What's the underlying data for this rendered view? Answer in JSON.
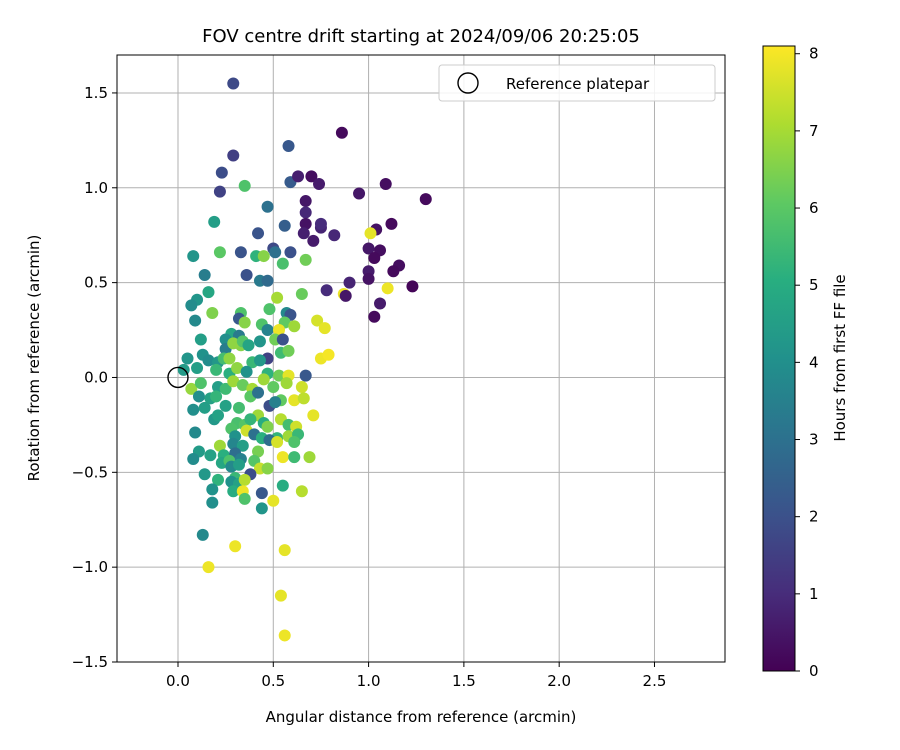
{
  "chart_data": {
    "type": "scatter",
    "title": "FOV centre drift starting at 2024/09/06 20:25:05",
    "xlabel": "Angular distance from reference (arcmin)",
    "ylabel": "Rotation from reference (arcmin)",
    "xlim": [
      -0.32,
      2.87
    ],
    "ylim": [
      -1.5,
      1.7
    ],
    "x_ticks": [
      0.0,
      0.5,
      1.0,
      1.5,
      2.0,
      2.5
    ],
    "y_ticks": [
      -1.5,
      -1.0,
      -0.5,
      0.0,
      0.5,
      1.0,
      1.5
    ],
    "grid": true,
    "legend": {
      "placement": "top-right",
      "entries": [
        "Reference platepar"
      ]
    },
    "reference_point": {
      "name": "Reference platepar",
      "x": 0.0,
      "y": 0.0
    },
    "colorbar": {
      "label": "Hours from first FF file",
      "range": [
        0,
        8.1
      ],
      "ticks": [
        0,
        1,
        2,
        3,
        4,
        5,
        6,
        7,
        8
      ],
      "colormap": "viridis"
    },
    "points": [
      {
        "x": 0.29,
        "y": 1.55,
        "h": 1.8
      },
      {
        "x": 0.58,
        "y": 1.22,
        "h": 2.2
      },
      {
        "x": 0.86,
        "y": 1.29,
        "h": 0.2
      },
      {
        "x": 0.29,
        "y": 1.17,
        "h": 1.5
      },
      {
        "x": 0.23,
        "y": 1.08,
        "h": 1.9
      },
      {
        "x": 0.22,
        "y": 0.98,
        "h": 1.6
      },
      {
        "x": 0.35,
        "y": 1.01,
        "h": 5.8
      },
      {
        "x": 0.59,
        "y": 1.03,
        "h": 2.3
      },
      {
        "x": 0.63,
        "y": 1.06,
        "h": 0.7
      },
      {
        "x": 0.7,
        "y": 1.06,
        "h": 0.3
      },
      {
        "x": 0.74,
        "y": 1.02,
        "h": 0.6
      },
      {
        "x": 0.95,
        "y": 0.97,
        "h": 0.5
      },
      {
        "x": 1.09,
        "y": 1.02,
        "h": 0.3
      },
      {
        "x": 1.3,
        "y": 0.94,
        "h": 0.2
      },
      {
        "x": 0.47,
        "y": 0.9,
        "h": 3.0
      },
      {
        "x": 0.67,
        "y": 0.93,
        "h": 0.5
      },
      {
        "x": 0.67,
        "y": 0.87,
        "h": 0.9
      },
      {
        "x": 0.19,
        "y": 0.82,
        "h": 4.5
      },
      {
        "x": 0.56,
        "y": 0.8,
        "h": 2.4
      },
      {
        "x": 0.67,
        "y": 0.81,
        "h": 0.4
      },
      {
        "x": 0.75,
        "y": 0.79,
        "h": 0.8
      },
      {
        "x": 0.75,
        "y": 0.81,
        "h": 1.0
      },
      {
        "x": 0.66,
        "y": 0.76,
        "h": 0.7
      },
      {
        "x": 0.71,
        "y": 0.72,
        "h": 0.6
      },
      {
        "x": 0.82,
        "y": 0.75,
        "h": 0.9
      },
      {
        "x": 1.04,
        "y": 0.78,
        "h": 0.4
      },
      {
        "x": 1.12,
        "y": 0.81,
        "h": 0.2
      },
      {
        "x": 1.01,
        "y": 0.76,
        "h": 7.8
      },
      {
        "x": 0.42,
        "y": 0.76,
        "h": 2.1
      },
      {
        "x": 0.33,
        "y": 0.66,
        "h": 2.1
      },
      {
        "x": 0.22,
        "y": 0.66,
        "h": 6.0
      },
      {
        "x": 0.5,
        "y": 0.68,
        "h": 1.8
      },
      {
        "x": 0.51,
        "y": 0.66,
        "h": 3.0
      },
      {
        "x": 0.59,
        "y": 0.66,
        "h": 2.0
      },
      {
        "x": 1.0,
        "y": 0.68,
        "h": 0.5
      },
      {
        "x": 1.06,
        "y": 0.67,
        "h": 0.3
      },
      {
        "x": 1.03,
        "y": 0.63,
        "h": 0.2
      },
      {
        "x": 0.08,
        "y": 0.64,
        "h": 4.2
      },
      {
        "x": 0.41,
        "y": 0.64,
        "h": 5.2
      },
      {
        "x": 0.45,
        "y": 0.64,
        "h": 6.6
      },
      {
        "x": 0.67,
        "y": 0.62,
        "h": 6.3
      },
      {
        "x": 0.55,
        "y": 0.6,
        "h": 5.7
      },
      {
        "x": 1.16,
        "y": 0.59,
        "h": 0.3
      },
      {
        "x": 1.0,
        "y": 0.56,
        "h": 0.6
      },
      {
        "x": 1.13,
        "y": 0.56,
        "h": 0.2
      },
      {
        "x": 0.14,
        "y": 0.54,
        "h": 3.4
      },
      {
        "x": 0.36,
        "y": 0.54,
        "h": 2.0
      },
      {
        "x": 0.43,
        "y": 0.51,
        "h": 3.3
      },
      {
        "x": 0.47,
        "y": 0.51,
        "h": 2.8
      },
      {
        "x": 0.78,
        "y": 0.46,
        "h": 1.0
      },
      {
        "x": 0.9,
        "y": 0.5,
        "h": 0.8
      },
      {
        "x": 1.0,
        "y": 0.52,
        "h": 0.4
      },
      {
        "x": 1.23,
        "y": 0.48,
        "h": 0.1
      },
      {
        "x": 0.16,
        "y": 0.45,
        "h": 4.8
      },
      {
        "x": 0.1,
        "y": 0.41,
        "h": 4.2
      },
      {
        "x": 0.07,
        "y": 0.38,
        "h": 3.9
      },
      {
        "x": 0.52,
        "y": 0.42,
        "h": 7.0
      },
      {
        "x": 0.65,
        "y": 0.44,
        "h": 6.2
      },
      {
        "x": 0.87,
        "y": 0.44,
        "h": 7.9
      },
      {
        "x": 0.88,
        "y": 0.43,
        "h": 0.5
      },
      {
        "x": 1.06,
        "y": 0.39,
        "h": 0.6
      },
      {
        "x": 1.03,
        "y": 0.32,
        "h": 0.2
      },
      {
        "x": 1.1,
        "y": 0.47,
        "h": 7.9
      },
      {
        "x": 0.18,
        "y": 0.34,
        "h": 6.5
      },
      {
        "x": 0.33,
        "y": 0.34,
        "h": 5.8
      },
      {
        "x": 0.48,
        "y": 0.36,
        "h": 5.8
      },
      {
        "x": 0.57,
        "y": 0.34,
        "h": 3.8
      },
      {
        "x": 0.59,
        "y": 0.33,
        "h": 2.1
      },
      {
        "x": 0.09,
        "y": 0.3,
        "h": 3.8
      },
      {
        "x": 0.32,
        "y": 0.31,
        "h": 2.2
      },
      {
        "x": 0.35,
        "y": 0.29,
        "h": 6.6
      },
      {
        "x": 0.44,
        "y": 0.28,
        "h": 5.8
      },
      {
        "x": 0.47,
        "y": 0.25,
        "h": 3.6
      },
      {
        "x": 0.56,
        "y": 0.29,
        "h": 6.1
      },
      {
        "x": 0.53,
        "y": 0.25,
        "h": 7.9
      },
      {
        "x": 0.61,
        "y": 0.27,
        "h": 6.9
      },
      {
        "x": 0.73,
        "y": 0.3,
        "h": 7.6
      },
      {
        "x": 0.77,
        "y": 0.26,
        "h": 7.8
      },
      {
        "x": 0.28,
        "y": 0.23,
        "h": 4.8
      },
      {
        "x": 0.12,
        "y": 0.2,
        "h": 4.5
      },
      {
        "x": 0.25,
        "y": 0.2,
        "h": 4.0
      },
      {
        "x": 0.32,
        "y": 0.22,
        "h": 3.3
      },
      {
        "x": 0.51,
        "y": 0.2,
        "h": 6.3
      },
      {
        "x": 0.55,
        "y": 0.2,
        "h": 2.0
      },
      {
        "x": 0.54,
        "y": 0.13,
        "h": 5.5
      },
      {
        "x": 0.25,
        "y": 0.15,
        "h": 3.4
      },
      {
        "x": 0.33,
        "y": 0.17,
        "h": 6.6
      },
      {
        "x": 0.29,
        "y": 0.18,
        "h": 6.7
      },
      {
        "x": 0.34,
        "y": 0.19,
        "h": 5.9
      },
      {
        "x": 0.37,
        "y": 0.17,
        "h": 4.7
      },
      {
        "x": 0.43,
        "y": 0.19,
        "h": 4.2
      },
      {
        "x": 0.47,
        "y": 0.1,
        "h": 1.6
      },
      {
        "x": 0.58,
        "y": 0.14,
        "h": 6.3
      },
      {
        "x": 0.13,
        "y": 0.12,
        "h": 4.1
      },
      {
        "x": 0.05,
        "y": 0.1,
        "h": 4.2
      },
      {
        "x": 0.16,
        "y": 0.09,
        "h": 3.9
      },
      {
        "x": 0.21,
        "y": 0.08,
        "h": 4.3
      },
      {
        "x": 0.24,
        "y": 0.1,
        "h": 5.6
      },
      {
        "x": 0.27,
        "y": 0.1,
        "h": 6.7
      },
      {
        "x": 0.39,
        "y": 0.08,
        "h": 5.4
      },
      {
        "x": 0.43,
        "y": 0.09,
        "h": 4.3
      },
      {
        "x": 0.75,
        "y": 0.1,
        "h": 7.9
      },
      {
        "x": 0.79,
        "y": 0.12,
        "h": 8.0
      },
      {
        "x": 0.03,
        "y": 0.04,
        "h": 4.4
      },
      {
        "x": 0.1,
        "y": 0.05,
        "h": 4.5
      },
      {
        "x": 0.2,
        "y": 0.04,
        "h": 5.4
      },
      {
        "x": 0.27,
        "y": 0.02,
        "h": 5.1
      },
      {
        "x": 0.31,
        "y": 0.05,
        "h": 6.7
      },
      {
        "x": 0.36,
        "y": 0.03,
        "h": 4.1
      },
      {
        "x": 0.47,
        "y": 0.02,
        "h": 5.2
      },
      {
        "x": 0.53,
        "y": 0.01,
        "h": 6.3
      },
      {
        "x": 0.58,
        "y": 0.01,
        "h": 7.8
      },
      {
        "x": 0.67,
        "y": 0.01,
        "h": 2.2
      },
      {
        "x": 0.07,
        "y": -0.06,
        "h": 6.8
      },
      {
        "x": 0.12,
        "y": -0.03,
        "h": 5.8
      },
      {
        "x": 0.21,
        "y": -0.05,
        "h": 4.5
      },
      {
        "x": 0.25,
        "y": -0.06,
        "h": 5.5
      },
      {
        "x": 0.29,
        "y": -0.02,
        "h": 6.9
      },
      {
        "x": 0.34,
        "y": -0.04,
        "h": 6.2
      },
      {
        "x": 0.39,
        "y": -0.06,
        "h": 7.0
      },
      {
        "x": 0.45,
        "y": -0.01,
        "h": 6.9
      },
      {
        "x": 0.5,
        "y": -0.05,
        "h": 6.1
      },
      {
        "x": 0.57,
        "y": -0.03,
        "h": 6.9
      },
      {
        "x": 0.65,
        "y": -0.05,
        "h": 7.5
      },
      {
        "x": 0.11,
        "y": -0.1,
        "h": 4.0
      },
      {
        "x": 0.17,
        "y": -0.11,
        "h": 4.6
      },
      {
        "x": 0.2,
        "y": -0.1,
        "h": 5.3
      },
      {
        "x": 0.38,
        "y": -0.1,
        "h": 6.0
      },
      {
        "x": 0.42,
        "y": -0.08,
        "h": 3.0
      },
      {
        "x": 0.54,
        "y": -0.12,
        "h": 6.1
      },
      {
        "x": 0.61,
        "y": -0.12,
        "h": 7.8
      },
      {
        "x": 0.66,
        "y": -0.11,
        "h": 7.3
      },
      {
        "x": 0.08,
        "y": -0.17,
        "h": 4.0
      },
      {
        "x": 0.14,
        "y": -0.16,
        "h": 4.5
      },
      {
        "x": 0.25,
        "y": -0.15,
        "h": 4.6
      },
      {
        "x": 0.32,
        "y": -0.16,
        "h": 5.6
      },
      {
        "x": 0.42,
        "y": -0.2,
        "h": 6.9
      },
      {
        "x": 0.48,
        "y": -0.15,
        "h": 1.9
      },
      {
        "x": 0.51,
        "y": -0.13,
        "h": 3.5
      },
      {
        "x": 0.71,
        "y": -0.2,
        "h": 7.8
      },
      {
        "x": 0.19,
        "y": -0.22,
        "h": 4.3
      },
      {
        "x": 0.21,
        "y": -0.2,
        "h": 4.6
      },
      {
        "x": 0.31,
        "y": -0.24,
        "h": 5.7
      },
      {
        "x": 0.35,
        "y": -0.25,
        "h": 5.9
      },
      {
        "x": 0.38,
        "y": -0.22,
        "h": 5.3
      },
      {
        "x": 0.45,
        "y": -0.24,
        "h": 5.0
      },
      {
        "x": 0.47,
        "y": -0.26,
        "h": 6.5
      },
      {
        "x": 0.54,
        "y": -0.22,
        "h": 7.2
      },
      {
        "x": 0.58,
        "y": -0.25,
        "h": 5.6
      },
      {
        "x": 0.62,
        "y": -0.26,
        "h": 7.5
      },
      {
        "x": 0.09,
        "y": -0.29,
        "h": 3.8
      },
      {
        "x": 0.28,
        "y": -0.27,
        "h": 5.8
      },
      {
        "x": 0.3,
        "y": -0.31,
        "h": 4.1
      },
      {
        "x": 0.36,
        "y": -0.28,
        "h": 7.5
      },
      {
        "x": 0.4,
        "y": -0.3,
        "h": 3.0
      },
      {
        "x": 0.44,
        "y": -0.32,
        "h": 5.1
      },
      {
        "x": 0.52,
        "y": -0.32,
        "h": 5.3
      },
      {
        "x": 0.58,
        "y": -0.31,
        "h": 6.9
      },
      {
        "x": 0.63,
        "y": -0.3,
        "h": 5.4
      },
      {
        "x": 0.22,
        "y": -0.36,
        "h": 6.9
      },
      {
        "x": 0.29,
        "y": -0.35,
        "h": 3.7
      },
      {
        "x": 0.34,
        "y": -0.36,
        "h": 4.5
      },
      {
        "x": 0.48,
        "y": -0.33,
        "h": 2.9
      },
      {
        "x": 0.52,
        "y": -0.34,
        "h": 7.6
      },
      {
        "x": 0.61,
        "y": -0.34,
        "h": 5.8
      },
      {
        "x": 0.11,
        "y": -0.39,
        "h": 4.4
      },
      {
        "x": 0.17,
        "y": -0.41,
        "h": 4.6
      },
      {
        "x": 0.24,
        "y": -0.41,
        "h": 5.1
      },
      {
        "x": 0.3,
        "y": -0.4,
        "h": 2.9
      },
      {
        "x": 0.42,
        "y": -0.39,
        "h": 6.4
      },
      {
        "x": 0.08,
        "y": -0.43,
        "h": 3.9
      },
      {
        "x": 0.23,
        "y": -0.45,
        "h": 4.8
      },
      {
        "x": 0.27,
        "y": -0.44,
        "h": 5.8
      },
      {
        "x": 0.33,
        "y": -0.43,
        "h": 3.5
      },
      {
        "x": 0.4,
        "y": -0.44,
        "h": 5.9
      },
      {
        "x": 0.55,
        "y": -0.42,
        "h": 7.9
      },
      {
        "x": 0.61,
        "y": -0.42,
        "h": 5.5
      },
      {
        "x": 0.69,
        "y": -0.42,
        "h": 6.9
      },
      {
        "x": 0.14,
        "y": -0.51,
        "h": 4.3
      },
      {
        "x": 0.28,
        "y": -0.47,
        "h": 3.8
      },
      {
        "x": 0.32,
        "y": -0.46,
        "h": 4.5
      },
      {
        "x": 0.43,
        "y": -0.48,
        "h": 7.4
      },
      {
        "x": 0.47,
        "y": -0.48,
        "h": 6.6
      },
      {
        "x": 0.21,
        "y": -0.54,
        "h": 5.2
      },
      {
        "x": 0.3,
        "y": -0.53,
        "h": 5.4
      },
      {
        "x": 0.38,
        "y": -0.51,
        "h": 1.9
      },
      {
        "x": 0.28,
        "y": -0.55,
        "h": 4.1
      },
      {
        "x": 0.32,
        "y": -0.56,
        "h": 4.6
      },
      {
        "x": 0.35,
        "y": -0.54,
        "h": 7.2
      },
      {
        "x": 0.18,
        "y": -0.59,
        "h": 4.1
      },
      {
        "x": 0.29,
        "y": -0.6,
        "h": 5.0
      },
      {
        "x": 0.34,
        "y": -0.6,
        "h": 7.9
      },
      {
        "x": 0.44,
        "y": -0.61,
        "h": 2.2
      },
      {
        "x": 0.55,
        "y": -0.57,
        "h": 5.0
      },
      {
        "x": 0.65,
        "y": -0.6,
        "h": 7.2
      },
      {
        "x": 0.35,
        "y": -0.64,
        "h": 5.8
      },
      {
        "x": 0.5,
        "y": -0.65,
        "h": 7.8
      },
      {
        "x": 0.18,
        "y": -0.66,
        "h": 4.0
      },
      {
        "x": 0.44,
        "y": -0.69,
        "h": 4.2
      },
      {
        "x": 0.13,
        "y": -0.83,
        "h": 3.8
      },
      {
        "x": 0.3,
        "y": -0.89,
        "h": 7.9
      },
      {
        "x": 0.56,
        "y": -0.91,
        "h": 7.8
      },
      {
        "x": 0.16,
        "y": -1.0,
        "h": 7.9
      },
      {
        "x": 0.54,
        "y": -1.15,
        "h": 7.8
      },
      {
        "x": 0.56,
        "y": -1.36,
        "h": 7.9
      }
    ]
  }
}
